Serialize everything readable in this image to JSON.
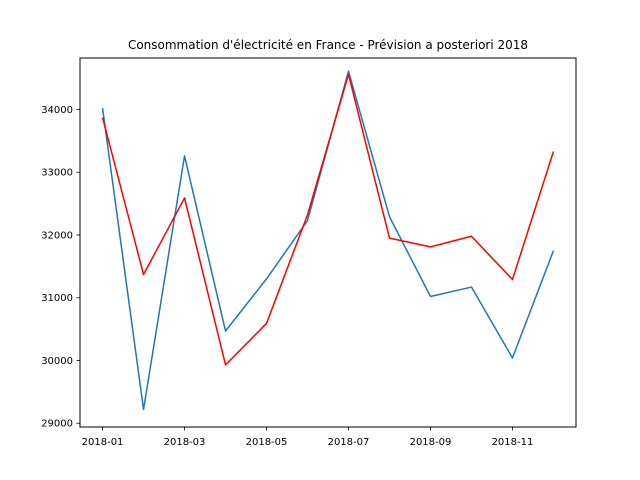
{
  "chart_data": {
    "type": "line",
    "title": "Consommation d'électricité en France - Prévision a posteriori 2018",
    "xlabel": "",
    "ylabel": "",
    "x": [
      "2018-01",
      "2018-02",
      "2018-03",
      "2018-04",
      "2018-05",
      "2018-06",
      "2018-07",
      "2018-08",
      "2018-09",
      "2018-10",
      "2018-11",
      "2018-12"
    ],
    "x_tick_labels": [
      "2018-01",
      "2018-03",
      "2018-05",
      "2018-07",
      "2018-09",
      "2018-11"
    ],
    "y_tick_labels": [
      "29000",
      "30000",
      "31000",
      "32000",
      "33000",
      "34000"
    ],
    "ylim": [
      28940,
      34820
    ],
    "grid": false,
    "legend": false,
    "series": [
      {
        "color": "#1f77b4",
        "values": [
          34020,
          29220,
          33260,
          30470,
          31300,
          32230,
          34610,
          32290,
          31020,
          31170,
          30040,
          31750
        ]
      },
      {
        "color": "#ff0000",
        "values": [
          33870,
          31370,
          32590,
          29930,
          30590,
          32320,
          34560,
          31950,
          31810,
          31980,
          31290,
          33330
        ]
      }
    ]
  }
}
